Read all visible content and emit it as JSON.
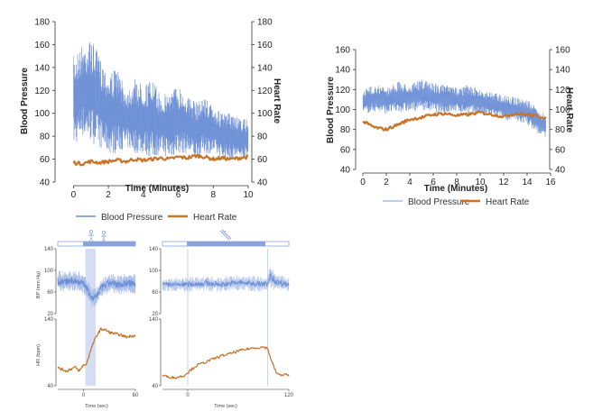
{
  "colors": {
    "bp": "#6d8fd6",
    "bp_light": "#a9bde8",
    "hr": "#c97326",
    "axis": "#333333",
    "shade": "#c9d5f0"
  },
  "chart_data": [
    {
      "id": "panel-a",
      "type": "line",
      "xlabel": "Time (Minutes)",
      "ylabel_left": "Blood Pressure",
      "ylabel_right": "Heart Rate",
      "xlim": [
        -1,
        10
      ],
      "ylim": [
        40,
        180
      ],
      "xticks": [
        "0",
        "2",
        "4",
        "6",
        "8",
        "10"
      ],
      "yticks_left": [
        "40",
        "60",
        "80",
        "100",
        "120",
        "140",
        "160",
        "180"
      ],
      "yticks_right": [
        "40",
        "60",
        "80",
        "100",
        "120",
        "140",
        "160",
        "180"
      ],
      "series": [
        {
          "name": "Blood Pressure",
          "style": "band",
          "x": [
            0,
            0.5,
            1,
            1.5,
            2,
            2.5,
            3,
            3.5,
            4,
            4.5,
            5,
            5.5,
            6,
            6.5,
            7,
            7.5,
            8,
            8.5,
            9,
            9.5,
            10
          ],
          "upper": [
            150,
            160,
            165,
            150,
            135,
            140,
            120,
            130,
            125,
            130,
            115,
            120,
            125,
            115,
            110,
            115,
            105,
            100,
            100,
            95,
            95
          ],
          "lower": [
            70,
            80,
            75,
            70,
            65,
            65,
            70,
            65,
            65,
            60,
            65,
            60,
            65,
            65,
            60,
            65,
            65,
            60,
            60,
            60,
            60
          ]
        },
        {
          "name": "Heart Rate",
          "style": "line",
          "x": [
            0,
            0.5,
            1,
            1.5,
            2,
            2.5,
            3,
            3.5,
            4,
            4.5,
            5,
            5.5,
            6,
            6.5,
            7,
            7.5,
            8,
            8.5,
            9,
            9.5,
            10
          ],
          "values": [
            57,
            56,
            58,
            57,
            58,
            59,
            58,
            60,
            59,
            60,
            61,
            60,
            62,
            61,
            63,
            62,
            60,
            61,
            60,
            61,
            62
          ]
        }
      ]
    },
    {
      "id": "panel-b",
      "type": "line",
      "xlabel": "Time (Minutes)",
      "ylabel_left": "Blood Pressure",
      "ylabel_right": "Heart Rate",
      "xlim": [
        0,
        16
      ],
      "ylim": [
        40,
        160
      ],
      "xticks": [
        "0",
        "2",
        "4",
        "6",
        "8",
        "10",
        "12",
        "14",
        "16"
      ],
      "yticks_left": [
        "40",
        "60",
        "80",
        "100",
        "120",
        "140",
        "160"
      ],
      "yticks_right": [
        "40",
        "60",
        "80",
        "100",
        "120",
        "140",
        "160"
      ],
      "series": [
        {
          "name": "Blood Pressure",
          "style": "band",
          "x": [
            0,
            1,
            2,
            3,
            4,
            5,
            6,
            7,
            8,
            9,
            10,
            11,
            12,
            13,
            14,
            15,
            15.6
          ],
          "upper": [
            120,
            125,
            122,
            128,
            125,
            130,
            127,
            125,
            122,
            125,
            120,
            118,
            115,
            112,
            110,
            100,
            95
          ],
          "lower": [
            95,
            98,
            96,
            97,
            98,
            100,
            97,
            96,
            98,
            95,
            95,
            92,
            90,
            88,
            85,
            75,
            72
          ]
        },
        {
          "name": "Heart Rate",
          "style": "line",
          "x": [
            0,
            1,
            2,
            3,
            4,
            5,
            6,
            7,
            8,
            9,
            10,
            11,
            12,
            13,
            14,
            15,
            15.6
          ],
          "values": [
            88,
            82,
            80,
            85,
            90,
            92,
            95,
            96,
            94,
            95,
            97,
            95,
            93,
            96,
            95,
            93,
            92
          ]
        }
      ]
    },
    {
      "id": "panel-c",
      "type": "line",
      "xlabel": "Time (sec)",
      "ylabel_top": "BP (mm Hg)",
      "ylabel_bottom": "HR (bpm)",
      "xlim": [
        -30,
        60
      ],
      "xticks": [
        "0",
        "60"
      ],
      "bp_ylim": [
        20,
        140
      ],
      "bp_yticks": [
        "20",
        "60",
        "100",
        "140"
      ],
      "hr_ylim": [
        40,
        140
      ],
      "hr_yticks": [
        "40",
        "140"
      ],
      "shade_x": [
        2,
        14
      ],
      "series": [
        {
          "name": "Blood Pressure",
          "x": [
            -30,
            -20,
            -10,
            0,
            5,
            10,
            15,
            20,
            30,
            40,
            50,
            60
          ],
          "upper": [
            100,
            98,
            100,
            96,
            80,
            65,
            70,
            85,
            95,
            92,
            95,
            94
          ],
          "lower": [
            60,
            60,
            62,
            58,
            45,
            30,
            35,
            50,
            58,
            55,
            58,
            56
          ]
        },
        {
          "name": "Heart Rate",
          "x": [
            -30,
            -20,
            -10,
            -5,
            0,
            2,
            5,
            10,
            15,
            20,
            25,
            30,
            40,
            50,
            55,
            60
          ],
          "values": [
            67,
            62,
            68,
            62,
            72,
            70,
            80,
            100,
            115,
            125,
            124,
            120,
            117,
            113,
            115,
            115
          ]
        }
      ]
    },
    {
      "id": "panel-d",
      "type": "line",
      "xlabel": "Time (sec)",
      "xlim": [
        -30,
        120
      ],
      "xticks": [
        "0",
        "120"
      ],
      "bp_ylim": [
        20,
        140
      ],
      "bp_yticks": [
        "20",
        "60",
        "100",
        "140"
      ],
      "hr_ylim": [
        40,
        140
      ],
      "hr_yticks": [
        "40",
        "140"
      ],
      "markers_x": [
        0,
        95
      ],
      "series": [
        {
          "name": "Blood Pressure",
          "x": [
            -30,
            0,
            20,
            40,
            60,
            80,
            95,
            98,
            105,
            120
          ],
          "upper": [
            85,
            88,
            90,
            88,
            92,
            90,
            88,
            110,
            95,
            88
          ],
          "lower": [
            62,
            60,
            62,
            60,
            63,
            61,
            60,
            68,
            62,
            60
          ]
        },
        {
          "name": "Heart Rate",
          "x": [
            -30,
            -15,
            -5,
            0,
            10,
            20,
            30,
            40,
            50,
            60,
            70,
            80,
            90,
            95,
            100,
            105,
            110,
            115,
            120
          ],
          "values": [
            55,
            52,
            55,
            60,
            70,
            75,
            80,
            85,
            88,
            92,
            95,
            97,
            98,
            96,
            75,
            60,
            55,
            58,
            55
          ]
        }
      ]
    }
  ],
  "legends": [
    {
      "id": "legend-a",
      "items": [
        {
          "label": "Blood Pressure",
          "series": "bp"
        },
        {
          "label": "Heart Rate",
          "series": "hr"
        }
      ]
    },
    {
      "id": "legend-b",
      "items": [
        {
          "label": "Blood Pressure",
          "series": "bp_light"
        },
        {
          "label": "Heart Rate",
          "series": "hr"
        }
      ]
    }
  ]
}
